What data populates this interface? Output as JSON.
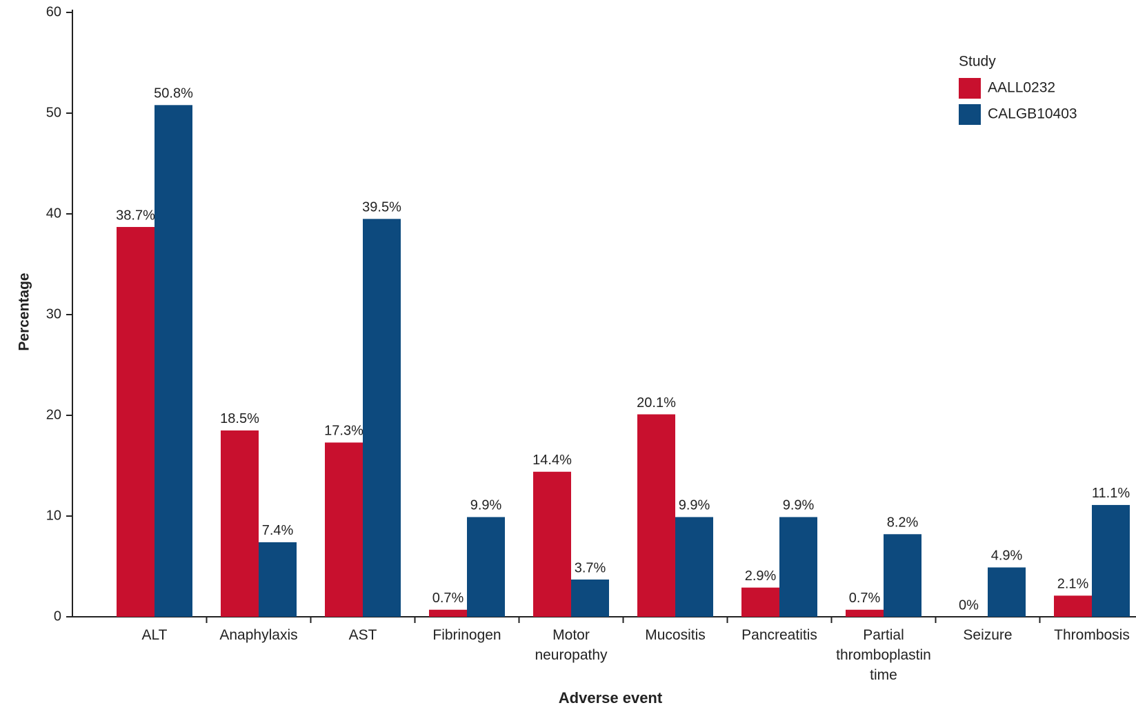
{
  "chart_data": {
    "type": "bar",
    "x_label": "Adverse event",
    "y_label": "Percentage",
    "legend_title": "Study",
    "legend_position": "upper right",
    "categories": [
      "ALT",
      "Anaphylaxis",
      "AST",
      "Fibrinogen",
      "Motor neuropathy",
      "Mucositis",
      "Pancreatitis",
      "Partial thromboplastin time",
      "Seizure",
      "Thrombosis"
    ],
    "series": [
      {
        "name": "AALL0232",
        "color": "#c8102e",
        "values": [
          38.7,
          18.5,
          17.3,
          0.7,
          14.4,
          20.1,
          2.9,
          0.7,
          0,
          2.1
        ],
        "value_labels": [
          "38.7%",
          "18.5%",
          "17.3%",
          "0.7%",
          "14.4%",
          "20.1%",
          "2.9%",
          "0.7%",
          "0%",
          "2.1%"
        ]
      },
      {
        "name": "CALGB10403",
        "color": "#0d4a7e",
        "values": [
          50.8,
          7.4,
          39.5,
          9.9,
          3.7,
          9.9,
          9.9,
          8.2,
          4.9,
          11.1
        ],
        "value_labels": [
          "50.8%",
          "7.4%",
          "39.5%",
          "9.9%",
          "3.7%",
          "9.9%",
          "9.9%",
          "8.2%",
          "4.9%",
          "11.1%"
        ]
      }
    ],
    "ylim": [
      0,
      60
    ],
    "yticks": [
      0,
      10,
      20,
      30,
      40,
      50,
      60
    ],
    "grid": false
  }
}
